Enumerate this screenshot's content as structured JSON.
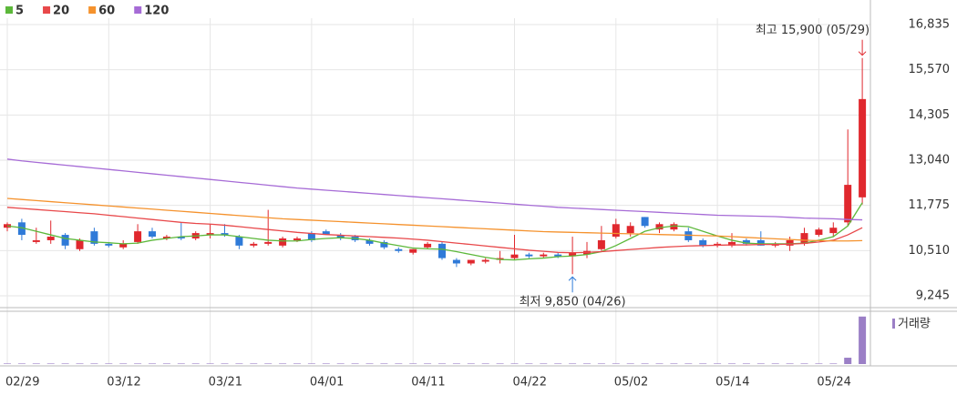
{
  "chart_data": {
    "type": "candlestick",
    "categories": [
      "02/29",
      null,
      null,
      null,
      null,
      null,
      null,
      "03/12",
      null,
      null,
      null,
      null,
      null,
      null,
      "03/21",
      null,
      null,
      null,
      null,
      null,
      null,
      "04/01",
      null,
      null,
      null,
      null,
      null,
      null,
      "04/11",
      null,
      null,
      null,
      null,
      null,
      null,
      "04/22",
      null,
      null,
      null,
      null,
      null,
      null,
      "05/02",
      null,
      null,
      null,
      null,
      null,
      null,
      "05/14",
      null,
      null,
      null,
      null,
      null,
      null,
      "05/24",
      null,
      null,
      null
    ],
    "ohlc": {
      "up_color": "#e0282e",
      "down_color": "#2f7ad8",
      "open": [
        11150,
        11300,
        10750,
        10800,
        10950,
        10550,
        11050,
        10700,
        10600,
        10750,
        11050,
        10850,
        10900,
        10850,
        10950,
        11000,
        10900,
        10650,
        10700,
        10650,
        10800,
        11000,
        11050,
        10950,
        10900,
        10800,
        10750,
        10550,
        10450,
        10600,
        10700,
        10250,
        10150,
        10200,
        10250,
        10300,
        10400,
        10350,
        10400,
        10350,
        10400,
        10550,
        10900,
        11000,
        11450,
        11100,
        11100,
        11050,
        10800,
        10650,
        10650,
        10800,
        10800,
        10650,
        10650,
        10700,
        10950,
        11000,
        11300,
        12000
      ],
      "high": [
        11300,
        11400,
        11150,
        11350,
        11000,
        10850,
        11150,
        10750,
        10800,
        11250,
        11150,
        10950,
        11300,
        11050,
        11250,
        11250,
        10950,
        10750,
        11650,
        10900,
        10900,
        11050,
        11100,
        11000,
        10950,
        10850,
        10800,
        10600,
        10550,
        10750,
        10750,
        10300,
        10250,
        10300,
        10500,
        10950,
        10450,
        10450,
        10450,
        10900,
        10750,
        11200,
        11400,
        11300,
        11450,
        11300,
        11300,
        11150,
        10850,
        10750,
        11000,
        10850,
        11050,
        10750,
        10900,
        11150,
        11150,
        11300,
        13900,
        15900
      ],
      "low": [
        11050,
        10800,
        10700,
        10700,
        10550,
        10500,
        10650,
        10600,
        10550,
        10700,
        10850,
        10800,
        10800,
        10800,
        10850,
        10900,
        10550,
        10600,
        10650,
        10600,
        10750,
        10750,
        10950,
        10800,
        10750,
        10650,
        10550,
        10450,
        10400,
        10550,
        10250,
        10050,
        10100,
        10150,
        10150,
        10250,
        10300,
        10300,
        10300,
        9850,
        10300,
        10500,
        10850,
        10900,
        11150,
        11000,
        11050,
        10750,
        10600,
        10600,
        10600,
        10650,
        10650,
        10600,
        10500,
        10650,
        10900,
        10900,
        11200,
        11800
      ],
      "close": [
        11250,
        10950,
        10800,
        10900,
        10650,
        10800,
        10700,
        10650,
        10700,
        11050,
        10900,
        10900,
        10850,
        11000,
        11000,
        10950,
        10650,
        10700,
        10750,
        10850,
        10850,
        10800,
        10950,
        10850,
        10800,
        10700,
        10600,
        10500,
        10550,
        10700,
        10300,
        10150,
        10250,
        10250,
        10300,
        10400,
        10350,
        10400,
        10350,
        10450,
        10500,
        10800,
        11250,
        11200,
        11200,
        11250,
        11250,
        10800,
        10650,
        10700,
        10750,
        10700,
        10650,
        10700,
        10800,
        11000,
        11100,
        11150,
        12350,
        14750
      ]
    },
    "series": [
      {
        "name": "5",
        "color": "#5cb83a",
        "values": [
          11200,
          11150,
          11050,
          10950,
          10850,
          10800,
          10750,
          10730,
          10700,
          10720,
          10800,
          10850,
          10900,
          10920,
          10950,
          10950,
          10900,
          10850,
          10800,
          10780,
          10780,
          10820,
          10850,
          10870,
          10850,
          10800,
          10720,
          10650,
          10580,
          10560,
          10550,
          10480,
          10400,
          10320,
          10260,
          10250,
          10280,
          10300,
          10340,
          10360,
          10400,
          10480,
          10650,
          10850,
          11050,
          11150,
          11200,
          11180,
          11050,
          10920,
          10800,
          10720,
          10700,
          10700,
          10700,
          10720,
          10800,
          10900,
          11200,
          11850
        ]
      },
      {
        "name": "20",
        "color": "#e8484a",
        "values": [
          11720,
          11690,
          11660,
          11630,
          11600,
          11570,
          11540,
          11500,
          11460,
          11420,
          11380,
          11340,
          11300,
          11270,
          11250,
          11220,
          11180,
          11140,
          11100,
          11060,
          11020,
          10990,
          10960,
          10940,
          10920,
          10900,
          10880,
          10860,
          10830,
          10800,
          10760,
          10720,
          10680,
          10640,
          10600,
          10560,
          10520,
          10490,
          10460,
          10450,
          10460,
          10480,
          10510,
          10540,
          10570,
          10600,
          10620,
          10640,
          10650,
          10660,
          10670,
          10670,
          10680,
          10680,
          10690,
          10710,
          10750,
          10800,
          10950,
          11150
        ]
      },
      {
        "name": "60",
        "color": "#f5922d",
        "values": [
          11970,
          11940,
          11910,
          11880,
          11850,
          11820,
          11790,
          11760,
          11730,
          11700,
          11670,
          11640,
          11610,
          11580,
          11550,
          11520,
          11490,
          11460,
          11430,
          11400,
          11380,
          11360,
          11340,
          11320,
          11300,
          11280,
          11260,
          11240,
          11220,
          11200,
          11180,
          11160,
          11140,
          11120,
          11100,
          11080,
          11060,
          11040,
          11030,
          11020,
          11010,
          11000,
          10990,
          10980,
          10970,
          10960,
          10950,
          10940,
          10930,
          10920,
          10900,
          10880,
          10860,
          10840,
          10820,
          10800,
          10790,
          10780,
          10780,
          10790
        ]
      },
      {
        "name": "120",
        "color": "#a66bd6",
        "values": [
          13070,
          13020,
          12980,
          12940,
          12900,
          12860,
          12820,
          12780,
          12740,
          12700,
          12660,
          12620,
          12580,
          12540,
          12500,
          12460,
          12420,
          12380,
          12340,
          12300,
          12260,
          12230,
          12200,
          12170,
          12140,
          12110,
          12080,
          12050,
          12020,
          11990,
          11960,
          11930,
          11900,
          11870,
          11840,
          11810,
          11780,
          11750,
          11720,
          11700,
          11680,
          11660,
          11640,
          11620,
          11600,
          11580,
          11560,
          11540,
          11520,
          11500,
          11490,
          11480,
          11470,
          11460,
          11440,
          11420,
          11410,
          11400,
          11380,
          11370
        ]
      }
    ],
    "volume": {
      "name": "거래량",
      "color": "#9b7fc6",
      "ylim": [
        0,
        100
      ],
      "values": [
        1,
        1,
        1,
        1,
        1,
        1,
        1,
        1,
        1,
        1,
        1,
        1,
        1,
        1,
        1,
        1,
        1,
        1,
        1,
        1,
        1,
        1,
        1,
        1,
        1,
        1,
        1,
        1,
        1,
        1,
        1,
        1,
        1,
        1,
        1,
        1,
        1,
        1,
        1,
        1,
        1,
        1,
        1,
        1,
        1,
        1,
        1,
        1,
        1,
        1,
        1,
        1,
        1,
        1,
        1,
        1,
        1,
        1,
        12,
        90
      ]
    },
    "ylim": [
      8914,
      17013
    ],
    "yticks": [
      {
        "value": 16835,
        "label": "16,835"
      },
      {
        "value": 15570,
        "label": "15,570"
      },
      {
        "value": 14305,
        "label": "14,305"
      },
      {
        "value": 13040,
        "label": "13,040"
      },
      {
        "value": 11775,
        "label": "11,775"
      },
      {
        "value": 10510,
        "label": "10,510"
      },
      {
        "value": 9245,
        "label": "9,245"
      }
    ],
    "grid": true,
    "annotations": [
      {
        "text": "최고 15,900 (05/29)",
        "color": "#e0282e",
        "at": "high"
      },
      {
        "text": "최저 9,850 (04/26)",
        "color": "#2f7ad8",
        "at": "low"
      }
    ]
  }
}
